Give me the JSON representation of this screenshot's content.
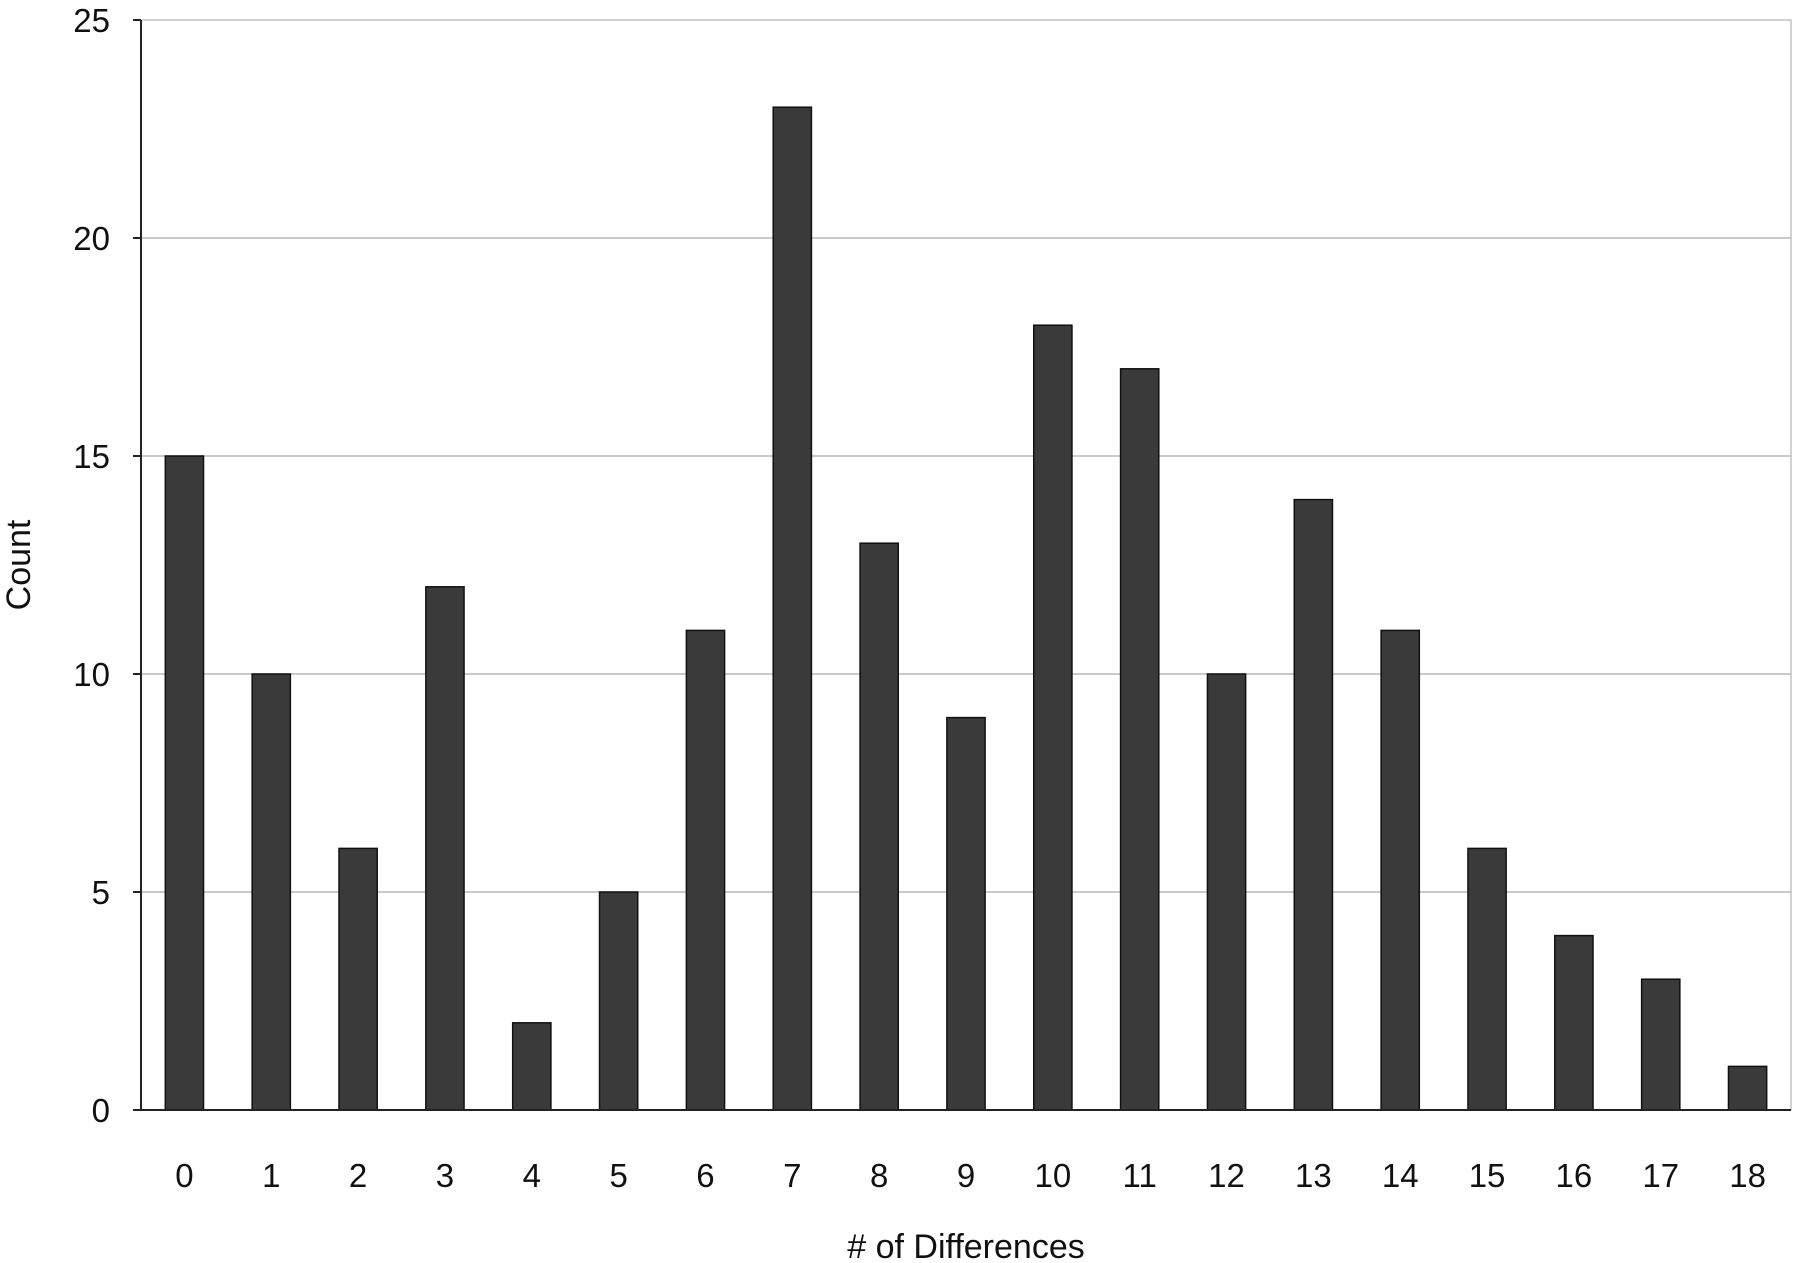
{
  "chart_data": {
    "type": "bar",
    "categories": [
      "0",
      "1",
      "2",
      "3",
      "4",
      "5",
      "6",
      "7",
      "8",
      "9",
      "10",
      "11",
      "12",
      "13",
      "14",
      "15",
      "16",
      "17",
      "18"
    ],
    "values": [
      15,
      10,
      6,
      12,
      2,
      5,
      11,
      23,
      13,
      9,
      18,
      17,
      10,
      14,
      11,
      6,
      4,
      3,
      1
    ],
    "title": "",
    "xlabel": "# of Differences",
    "ylabel": "Count",
    "ylim": [
      0,
      25
    ],
    "yticks": [
      0,
      5,
      10,
      15,
      20,
      25
    ],
    "grid": "horizontal",
    "legend": "none",
    "colors": {
      "bar": "#3a3a3a",
      "grid": "#b8b8b8",
      "axis": "#222222"
    }
  }
}
